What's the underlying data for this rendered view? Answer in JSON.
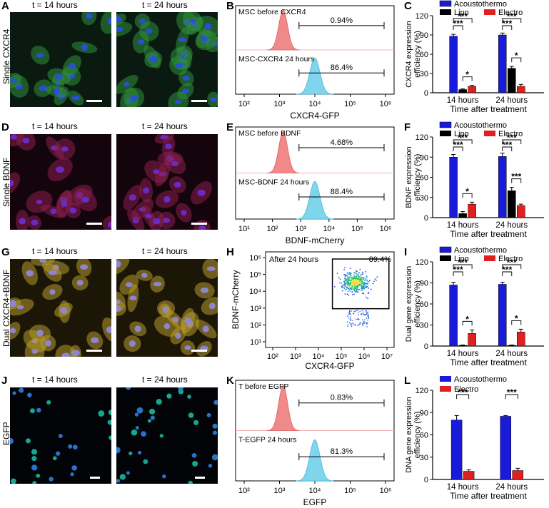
{
  "panel_letters": {
    "A": "A",
    "B": "B",
    "C": "C",
    "D": "D",
    "E": "E",
    "F": "F",
    "G": "G",
    "H": "H",
    "I": "I",
    "J": "J",
    "K": "K",
    "L": "L"
  },
  "row_labels": [
    "Single CXCR4",
    "Single BDNF",
    "Dual CXCR4+BDNF",
    "EGFP"
  ],
  "time_titles": {
    "t14": "t = 14 hours",
    "t24": "t = 24 hours"
  },
  "micro_colors": {
    "row1": {
      "bg": "#0b1a10",
      "cell": "#2f8f3a",
      "nuc": "#2a4fd6"
    },
    "row2": {
      "bg": "#14040c",
      "cell": "#8a1f4f",
      "nuc": "#6a2cc8"
    },
    "row3": {
      "bg": "#1c1606",
      "cell": "#b59a2e",
      "nuc": "#8f86d8"
    },
    "row4": {
      "bg": "#010307",
      "cell": "#18b7a0",
      "nuc": "#2c7fe0"
    }
  },
  "flow": [
    {
      "id": "B",
      "top_label": "MSC before CXCR4",
      "top_pct": "0.94%",
      "bottom_label": "MSC-CXCR4 24 hours",
      "bottom_pct": "86.4%",
      "xlabel": "CXCR4-GFP",
      "ticks": [
        "10²",
        "10³",
        "10⁴",
        "10⁵",
        "10⁶"
      ]
    },
    {
      "id": "E",
      "top_label": "MSC before BDNF",
      "top_pct": "4.68%",
      "bottom_label": "MSC-BDNF 24 hours",
      "bottom_pct": "88.4%",
      "xlabel": "BDNF-mCherry",
      "ticks": [
        "10¹",
        "10²",
        "10³",
        "10⁴",
        "10⁵",
        "10⁶"
      ]
    },
    {
      "id": "K",
      "top_label": "T before EGFP",
      "top_pct": "0.83%",
      "bottom_label": "T-EGFP 24 hours",
      "bottom_pct": "81.3%",
      "xlabel": "EGFP",
      "ticks": [
        "10²",
        "10³",
        "10⁴",
        "10⁵",
        "10⁶"
      ]
    }
  ],
  "scatter_h": {
    "label": "After 24 hours",
    "pct": "89.4%",
    "xlabel": "CXCR4-GFP",
    "ylabel": "BDNF-mCherry",
    "xticks": [
      "10²",
      "10³",
      "10⁴",
      "10⁵",
      "10⁶",
      "10⁷"
    ],
    "yticks": [
      "10¹",
      "10²",
      "10³",
      "10⁴",
      "10⁵",
      "10⁶"
    ]
  },
  "chart_data": [
    {
      "id": "C",
      "type": "bar",
      "categories": [
        "14 hours",
        "24 hours"
      ],
      "ylabel": "CXCR4 expression efficiency (%)",
      "xlabel": "Time after treatment",
      "ylim": [
        0,
        120
      ],
      "yticks": [
        0,
        30,
        60,
        90,
        120
      ],
      "series": [
        {
          "name": "Acoustothermo",
          "values": [
            88,
            90
          ],
          "err": [
            3,
            3
          ]
        },
        {
          "name": "Lipo",
          "values": [
            5,
            38
          ],
          "err": [
            1,
            3
          ]
        },
        {
          "name": "Electro",
          "values": [
            10,
            10
          ],
          "err": [
            1.5,
            3
          ]
        }
      ],
      "sig": [
        [
          "***",
          "***",
          "*"
        ],
        [
          "***",
          "***",
          "*"
        ]
      ]
    },
    {
      "id": "F",
      "type": "bar",
      "categories": [
        "14 hours",
        "24 hours"
      ],
      "ylabel": "BDNF expression efficiency (%)",
      "xlabel": "Time after treatment",
      "ylim": [
        0,
        120
      ],
      "yticks": [
        0,
        30,
        60,
        90,
        120
      ],
      "series": [
        {
          "name": "Acoustothermo",
          "values": [
            90,
            91
          ],
          "err": [
            4,
            5
          ]
        },
        {
          "name": "Lipo",
          "values": [
            6,
            40
          ],
          "err": [
            3,
            5
          ]
        },
        {
          "name": "Electro",
          "values": [
            20,
            18
          ],
          "err": [
            3,
            2
          ]
        }
      ],
      "sig": [
        [
          "***",
          "***",
          "*"
        ],
        [
          "***",
          "***",
          "***"
        ]
      ]
    },
    {
      "id": "I",
      "type": "bar",
      "categories": [
        "14 hours",
        "24 hours"
      ],
      "ylabel": "Dual gene expression efficiency (%)",
      "xlabel": "Time after treatment",
      "ylim": [
        0,
        120
      ],
      "yticks": [
        0,
        30,
        60,
        90,
        120
      ],
      "series": [
        {
          "name": "Acoustothermo",
          "values": [
            87,
            88
          ],
          "err": [
            4,
            3
          ]
        },
        {
          "name": "Lipo",
          "values": [
            1,
            1
          ],
          "err": [
            0.5,
            0.5
          ]
        },
        {
          "name": "Electro",
          "values": [
            18,
            20
          ],
          "err": [
            5,
            4
          ]
        }
      ],
      "sig": [
        [
          "***",
          "***",
          "*"
        ],
        [
          "***",
          "***",
          "*"
        ]
      ]
    },
    {
      "id": "L",
      "type": "bar",
      "categories": [
        "14 hours",
        "24 hours"
      ],
      "ylabel": "DNA gene expression efficiency (%)",
      "xlabel": "Time after treatment",
      "ylim": [
        0,
        120
      ],
      "yticks": [
        0,
        30,
        60,
        90,
        120
      ],
      "series": [
        {
          "name": "Acoustothermo",
          "values": [
            80,
            85
          ],
          "err": [
            6,
            1
          ]
        },
        {
          "name": "Electro",
          "values": [
            11,
            12
          ],
          "err": [
            2,
            3
          ]
        }
      ],
      "sig": [
        [
          "***"
        ],
        [
          "***"
        ]
      ]
    }
  ],
  "colors": {
    "acousto": "#1a1adb",
    "lipo": "#000000",
    "electro": "#e02020",
    "hist_red": "#f08a8a",
    "hist_blue": "#7fd6ec"
  }
}
